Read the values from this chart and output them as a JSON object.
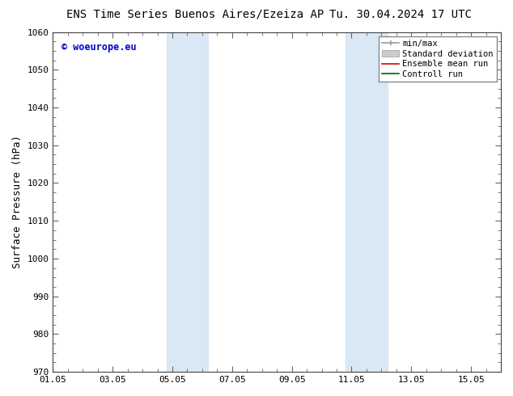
{
  "title_left": "ENS Time Series Buenos Aires/Ezeiza AP",
  "title_right": "Tu. 30.04.2024 17 UTC",
  "ylabel": "Surface Pressure (hPa)",
  "ylim": [
    970,
    1060
  ],
  "yticks": [
    970,
    980,
    990,
    1000,
    1010,
    1020,
    1030,
    1040,
    1050,
    1060
  ],
  "xlim": [
    0,
    15
  ],
  "xtick_labels": [
    "01.05",
    "03.05",
    "05.05",
    "07.05",
    "09.05",
    "11.05",
    "13.05",
    "15.05"
  ],
  "xtick_positions": [
    0,
    2,
    4,
    6,
    8,
    10,
    12,
    14
  ],
  "shade_bands": [
    {
      "x_start": 3.5,
      "x_end": 4.0,
      "color": "#ddeef8"
    },
    {
      "x_start": 4.0,
      "x_end": 5.0,
      "color": "#ddeef8"
    },
    {
      "x_start": 5.0,
      "x_end": 5.5,
      "color": "#ddeef8"
    },
    {
      "x_start": 9.5,
      "x_end": 10.0,
      "color": "#ddeef8"
    },
    {
      "x_start": 10.0,
      "x_end": 11.0,
      "color": "#ddeef8"
    },
    {
      "x_start": 11.0,
      "x_end": 11.5,
      "color": "#ddeef8"
    }
  ],
  "shade_bands2": [
    {
      "x_start": 3.75,
      "x_end": 5.25,
      "color": "#d6e9f8"
    },
    {
      "x_start": 9.75,
      "x_end": 11.25,
      "color": "#d6e9f8"
    }
  ],
  "watermark_text": "© woeurope.eu",
  "watermark_color": "#0000cc",
  "background_color": "#ffffff",
  "plot_bg_color": "#ffffff",
  "title_fontsize": 10,
  "tick_fontsize": 8,
  "label_fontsize": 9,
  "legend_fontsize": 8
}
